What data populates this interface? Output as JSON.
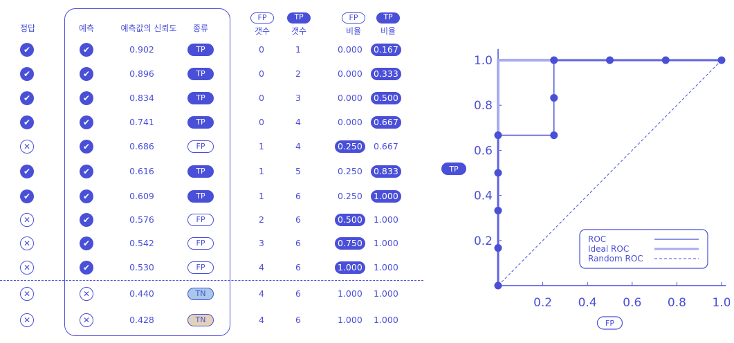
{
  "headers": {
    "truth": "정답",
    "pred": "예측",
    "score": "예측값의 신뢰도",
    "kind": "종류",
    "fp_badge": "FP",
    "tp_badge": "TP",
    "count_label": "갯수",
    "rate_label": "비율"
  },
  "rows": [
    {
      "truth": "check",
      "pred": "check",
      "score": "0.902",
      "kind": "TP",
      "fp_cnt": "0",
      "tp_cnt": "1",
      "fp_rate": "0.000",
      "tp_rate": "0.167",
      "hl": "tp"
    },
    {
      "truth": "check",
      "pred": "check",
      "score": "0.896",
      "kind": "TP",
      "fp_cnt": "0",
      "tp_cnt": "2",
      "fp_rate": "0.000",
      "tp_rate": "0.333",
      "hl": "tp"
    },
    {
      "truth": "check",
      "pred": "check",
      "score": "0.834",
      "kind": "TP",
      "fp_cnt": "0",
      "tp_cnt": "3",
      "fp_rate": "0.000",
      "tp_rate": "0.500",
      "hl": "tp"
    },
    {
      "truth": "check",
      "pred": "check",
      "score": "0.741",
      "kind": "TP",
      "fp_cnt": "0",
      "tp_cnt": "4",
      "fp_rate": "0.000",
      "tp_rate": "0.667",
      "hl": "tp"
    },
    {
      "truth": "cross",
      "pred": "check",
      "score": "0.686",
      "kind": "FP",
      "fp_cnt": "1",
      "tp_cnt": "4",
      "fp_rate": "0.250",
      "tp_rate": "0.667",
      "hl": "fp"
    },
    {
      "truth": "check",
      "pred": "check",
      "score": "0.616",
      "kind": "TP",
      "fp_cnt": "1",
      "tp_cnt": "5",
      "fp_rate": "0.250",
      "tp_rate": "0.833",
      "hl": "tp"
    },
    {
      "truth": "check",
      "pred": "check",
      "score": "0.609",
      "kind": "TP",
      "fp_cnt": "1",
      "tp_cnt": "6",
      "fp_rate": "0.250",
      "tp_rate": "1.000",
      "hl": "tp"
    },
    {
      "truth": "cross",
      "pred": "check",
      "score": "0.576",
      "kind": "FP",
      "fp_cnt": "2",
      "tp_cnt": "6",
      "fp_rate": "0.500",
      "tp_rate": "1.000",
      "hl": "fp"
    },
    {
      "truth": "cross",
      "pred": "check",
      "score": "0.542",
      "kind": "FP",
      "fp_cnt": "3",
      "tp_cnt": "6",
      "fp_rate": "0.750",
      "tp_rate": "1.000",
      "hl": "fp"
    },
    {
      "truth": "cross",
      "pred": "check",
      "score": "0.530",
      "kind": "FP",
      "fp_cnt": "4",
      "tp_cnt": "6",
      "fp_rate": "1.000",
      "tp_rate": "1.000",
      "hl": "fp"
    },
    {
      "truth": "cross",
      "pred": "cross",
      "score": "0.440",
      "kind": "TN",
      "fp_cnt": "4",
      "tp_cnt": "6",
      "fp_rate": "1.000",
      "tp_rate": "1.000",
      "hl": "none"
    },
    {
      "truth": "cross",
      "pred": "cross",
      "score": "0.428",
      "kind": "TN",
      "fp_cnt": "4",
      "tp_cnt": "6",
      "fp_rate": "1.000",
      "tp_rate": "1.000",
      "hl": "none"
    }
  ],
  "roc": {
    "xlabel": "FP",
    "ylabel": "TP",
    "x_ticks": [
      "0.2",
      "0.4",
      "0.6",
      "0.8",
      "1.0"
    ],
    "y_ticks": [
      "0.2",
      "0.4",
      "0.6",
      "0.8",
      "1.0"
    ],
    "roc_points": [
      [
        0,
        0
      ],
      [
        0,
        0.167
      ],
      [
        0,
        0.333
      ],
      [
        0,
        0.5
      ],
      [
        0,
        0.667
      ],
      [
        0.25,
        0.667
      ],
      [
        0.25,
        0.833
      ],
      [
        0.25,
        1.0
      ],
      [
        0.5,
        1.0
      ],
      [
        0.75,
        1.0
      ],
      [
        1.0,
        1.0
      ]
    ],
    "legend": [
      "ROC",
      "Ideal ROC",
      "Random ROC"
    ],
    "colors": {
      "main": "#4a4fd8",
      "ideal": "#a9abf0"
    }
  }
}
